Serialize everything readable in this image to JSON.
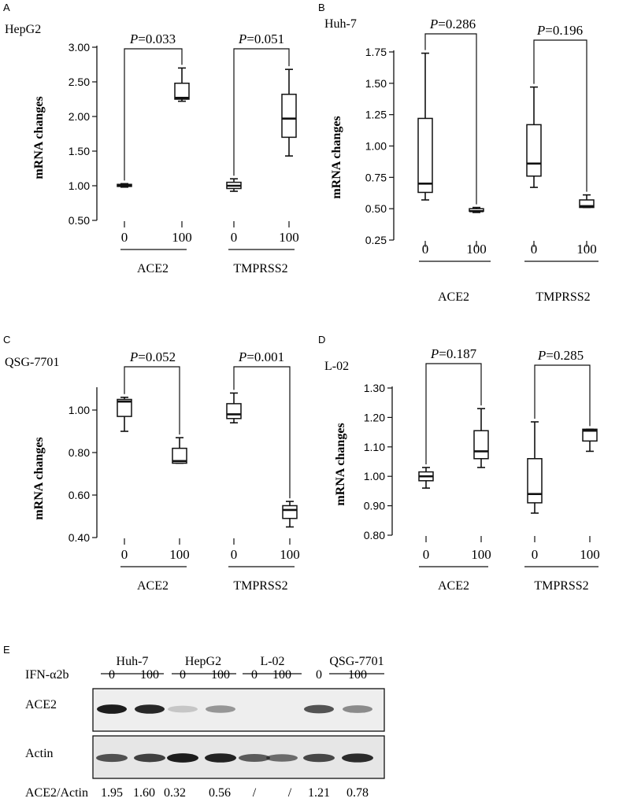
{
  "chart_data": [
    {
      "panel": "A",
      "type": "box",
      "cell_line": "HepG2",
      "ylabel": "mRNA changes",
      "ylim": [
        0.5,
        3.0
      ],
      "yticks": [
        0.5,
        1.0,
        1.5,
        2.0,
        2.5,
        3.0
      ],
      "ytick_labels": [
        "0.50",
        "1.00",
        "1.50",
        "2.00",
        "2.50",
        "3.00"
      ],
      "categories": [
        "0",
        "100",
        "0",
        "100"
      ],
      "groups": [
        {
          "name": "ACE2",
          "p_prefix": "P",
          "p_value": "=0.033",
          "boxes": [
            {
              "min": 0.98,
              "q1": 0.99,
              "median": 1.0,
              "q3": 1.02,
              "max": 1.03
            },
            {
              "min": 2.22,
              "q1": 2.25,
              "median": 2.27,
              "q3": 2.48,
              "max": 2.7
            }
          ]
        },
        {
          "name": "TMPRSS2",
          "p_prefix": "P",
          "p_value": "=0.051",
          "boxes": [
            {
              "min": 0.92,
              "q1": 0.96,
              "median": 1.0,
              "q3": 1.05,
              "max": 1.1
            },
            {
              "min": 1.43,
              "q1": 1.7,
              "median": 1.97,
              "q3": 2.32,
              "max": 2.68
            }
          ]
        }
      ]
    },
    {
      "panel": "B",
      "type": "box",
      "cell_line": "Huh-7",
      "ylabel": "mRNA changes",
      "ylim": [
        0.25,
        1.75
      ],
      "yticks": [
        0.25,
        0.5,
        0.75,
        1.0,
        1.25,
        1.5,
        1.75
      ],
      "ytick_labels": [
        "0.25",
        "0.50",
        "0.75",
        "1.00",
        "1.25",
        "1.50",
        "1.75"
      ],
      "categories": [
        "0",
        "100",
        "0",
        "100"
      ],
      "groups": [
        {
          "name": "ACE2",
          "p_prefix": "P",
          "p_value": "=0.286",
          "boxes": [
            {
              "min": 0.57,
              "q1": 0.63,
              "median": 0.7,
              "q3": 1.22,
              "max": 1.74
            },
            {
              "min": 0.47,
              "q1": 0.48,
              "median": 0.48,
              "q3": 0.5,
              "max": 0.51
            }
          ]
        },
        {
          "name": "TMPRSS2",
          "p_prefix": "P",
          "p_value": "=0.196",
          "boxes": [
            {
              "min": 0.67,
              "q1": 0.76,
              "median": 0.86,
              "q3": 1.17,
              "max": 1.47
            },
            {
              "min": 0.51,
              "q1": 0.51,
              "median": 0.52,
              "q3": 0.57,
              "max": 0.61
            }
          ]
        }
      ]
    },
    {
      "panel": "C",
      "type": "box",
      "cell_line": "QSG-7701",
      "ylabel": "mRNA changes",
      "ylim": [
        0.4,
        1.1
      ],
      "yticks": [
        0.4,
        0.6,
        0.8,
        1.0
      ],
      "ytick_labels": [
        "0.40",
        "0.60",
        "0.80",
        "1.00"
      ],
      "categories": [
        "0",
        "100",
        "0",
        "100"
      ],
      "groups": [
        {
          "name": "ACE2",
          "p_prefix": "P",
          "p_value": "=0.052",
          "boxes": [
            {
              "min": 0.9,
              "q1": 0.97,
              "median": 1.04,
              "q3": 1.05,
              "max": 1.06
            },
            {
              "min": 0.75,
              "q1": 0.75,
              "median": 0.76,
              "q3": 0.82,
              "max": 0.87
            }
          ]
        },
        {
          "name": "TMPRSS2",
          "p_prefix": "P",
          "p_value": "=0.001",
          "boxes": [
            {
              "min": 0.94,
              "q1": 0.96,
              "median": 0.98,
              "q3": 1.03,
              "max": 1.08
            },
            {
              "min": 0.45,
              "q1": 0.49,
              "median": 0.53,
              "q3": 0.55,
              "max": 0.57
            }
          ]
        }
      ]
    },
    {
      "panel": "D",
      "type": "box",
      "cell_line": "L-02",
      "ylabel": "mRNA changes",
      "ylim": [
        0.8,
        1.3
      ],
      "yticks": [
        0.8,
        0.9,
        1.0,
        1.1,
        1.2,
        1.3
      ],
      "ytick_labels": [
        "0.80",
        "0.90",
        "1.00",
        "1.10",
        "1.20",
        "1.30"
      ],
      "categories": [
        "0",
        "100",
        "0",
        "100"
      ],
      "groups": [
        {
          "name": "ACE2",
          "p_prefix": "P",
          "p_value": "=0.187",
          "boxes": [
            {
              "min": 0.96,
              "q1": 0.985,
              "median": 1.0,
              "q3": 1.015,
              "max": 1.03
            },
            {
              "min": 1.03,
              "q1": 1.06,
              "median": 1.085,
              "q3": 1.155,
              "max": 1.23
            }
          ]
        },
        {
          "name": "TMPRSS2",
          "p_prefix": "P",
          "p_value": "=0.285",
          "boxes": [
            {
              "min": 0.875,
              "q1": 0.91,
              "median": 0.94,
              "q3": 1.06,
              "max": 1.185
            },
            {
              "min": 1.085,
              "q1": 1.12,
              "median": 1.155,
              "q3": 1.16,
              "max": 1.16
            }
          ]
        }
      ]
    }
  ],
  "western_blot": {
    "panel": "E",
    "cell_lines": [
      "Huh-7",
      "HepG2",
      "L-02",
      "QSG-7701"
    ],
    "treatment_label": "IFN-α2b",
    "doses": [
      "0",
      "100",
      "0",
      "100",
      "0",
      "100",
      "0",
      "100"
    ],
    "rows": [
      "ACE2",
      "Actin"
    ],
    "ratio_label": "ACE2/Actin",
    "ratios": [
      "1.95",
      "1.60",
      "0.32",
      "0.56",
      "/",
      "/",
      "1.21",
      "0.78"
    ],
    "ace2_band_intensity": [
      0.95,
      0.9,
      0.18,
      0.4,
      0,
      0,
      0.7,
      0.45
    ],
    "actin_band_intensity": [
      0.7,
      0.78,
      0.95,
      0.92,
      0.65,
      0.58,
      0.75,
      0.88
    ],
    "band_color": "#111111"
  }
}
